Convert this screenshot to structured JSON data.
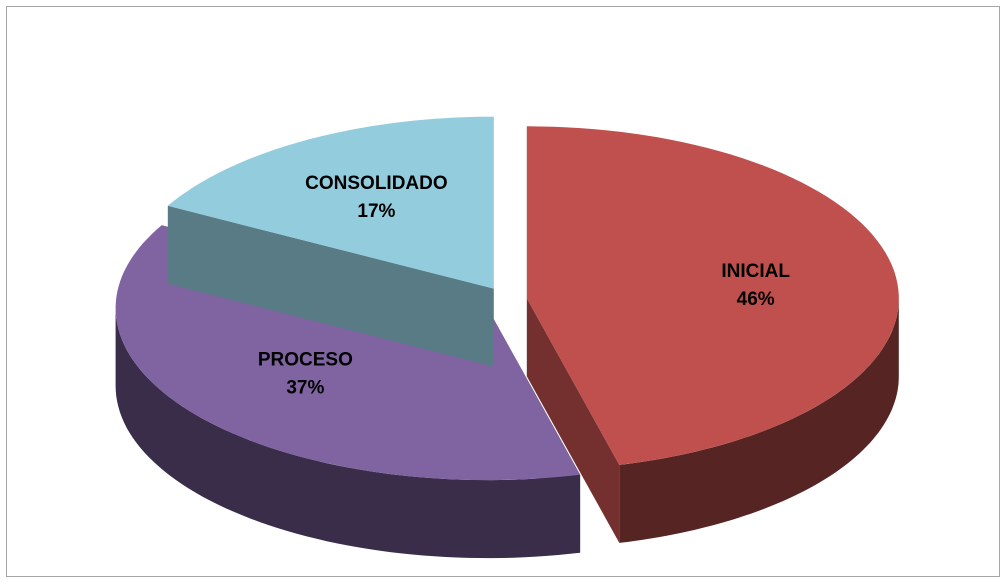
{
  "chart_data": {
    "type": "pie",
    "categories": [
      "INICIAL",
      "PROCESO",
      "CONSOLIDADO"
    ],
    "values": [
      46,
      37,
      17
    ],
    "value_labels": [
      "46%",
      "37%",
      "17%"
    ],
    "colors": [
      "#c0504d",
      "#8064a2",
      "#93cddd"
    ]
  }
}
